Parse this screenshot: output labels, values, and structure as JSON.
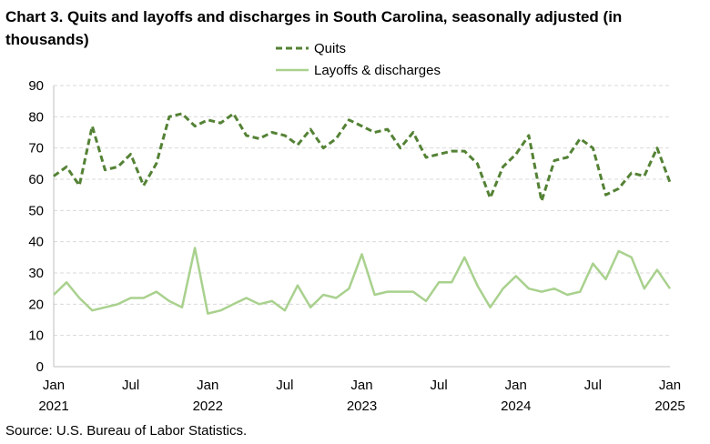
{
  "chart_data": {
    "type": "line",
    "title": "Chart 3. Quits and layoffs and discharges in South Carolina, seasonally adjusted (in thousands)",
    "source": "Source: U.S. Bureau of Labor Statistics.",
    "ylim": [
      0,
      90
    ],
    "y_ticks": [
      "0",
      "10",
      "20",
      "30",
      "40",
      "50",
      "60",
      "70",
      "80",
      "90"
    ],
    "grid": "horizontal dashed",
    "legend_position": "top-center",
    "x_tick_labels": [
      {
        "month": "Jan",
        "year": "2021"
      },
      {
        "month": "Jul",
        "year": ""
      },
      {
        "month": "Jan",
        "year": "2022"
      },
      {
        "month": "Jul",
        "year": ""
      },
      {
        "month": "Jan",
        "year": "2023"
      },
      {
        "month": "Jul",
        "year": ""
      },
      {
        "month": "Jan",
        "year": "2024"
      },
      {
        "month": "Jul",
        "year": ""
      },
      {
        "month": "Jan",
        "year": "2025"
      }
    ],
    "x": [
      "Jan 2021",
      "Feb 2021",
      "Mar 2021",
      "Apr 2021",
      "May 2021",
      "Jun 2021",
      "Jul 2021",
      "Aug 2021",
      "Sep 2021",
      "Oct 2021",
      "Nov 2021",
      "Dec 2021",
      "Jan 2022",
      "Feb 2022",
      "Mar 2022",
      "Apr 2022",
      "May 2022",
      "Jun 2022",
      "Jul 2022",
      "Aug 2022",
      "Sep 2022",
      "Oct 2022",
      "Nov 2022",
      "Dec 2022",
      "Jan 2023",
      "Feb 2023",
      "Mar 2023",
      "Apr 2023",
      "May 2023",
      "Jun 2023",
      "Jul 2023",
      "Aug 2023",
      "Sep 2023",
      "Oct 2023",
      "Nov 2023",
      "Dec 2023",
      "Jan 2024",
      "Feb 2024",
      "Mar 2024",
      "Apr 2024",
      "May 2024",
      "Jun 2024",
      "Jul 2024",
      "Aug 2024",
      "Sep 2024",
      "Oct 2024",
      "Nov 2024",
      "Dec 2024",
      "Jan 2025"
    ],
    "series": [
      {
        "name": "Quits",
        "color": "#548235",
        "style": "dashed",
        "values": [
          61,
          64,
          58,
          77,
          63,
          64,
          68,
          58,
          65,
          80,
          81,
          77,
          79,
          78,
          81,
          74,
          73,
          75,
          74,
          71,
          76,
          70,
          73,
          79,
          77,
          75,
          76,
          70,
          75,
          67,
          68,
          69,
          69,
          65,
          54,
          64,
          68,
          74,
          53,
          66,
          67,
          73,
          70,
          55,
          57,
          62,
          61,
          70,
          59
        ]
      },
      {
        "name": "Layoffs & discharges",
        "color": "#a9d18e",
        "style": "solid",
        "values": [
          23,
          27,
          22,
          18,
          19,
          20,
          22,
          22,
          24,
          21,
          19,
          38,
          17,
          18,
          20,
          22,
          20,
          21,
          18,
          26,
          19,
          23,
          22,
          25,
          36,
          23,
          24,
          24,
          24,
          21,
          27,
          27,
          35,
          26,
          19,
          25,
          29,
          25,
          24,
          25,
          23,
          24,
          33,
          28,
          37,
          35,
          25,
          31,
          25
        ]
      }
    ]
  }
}
